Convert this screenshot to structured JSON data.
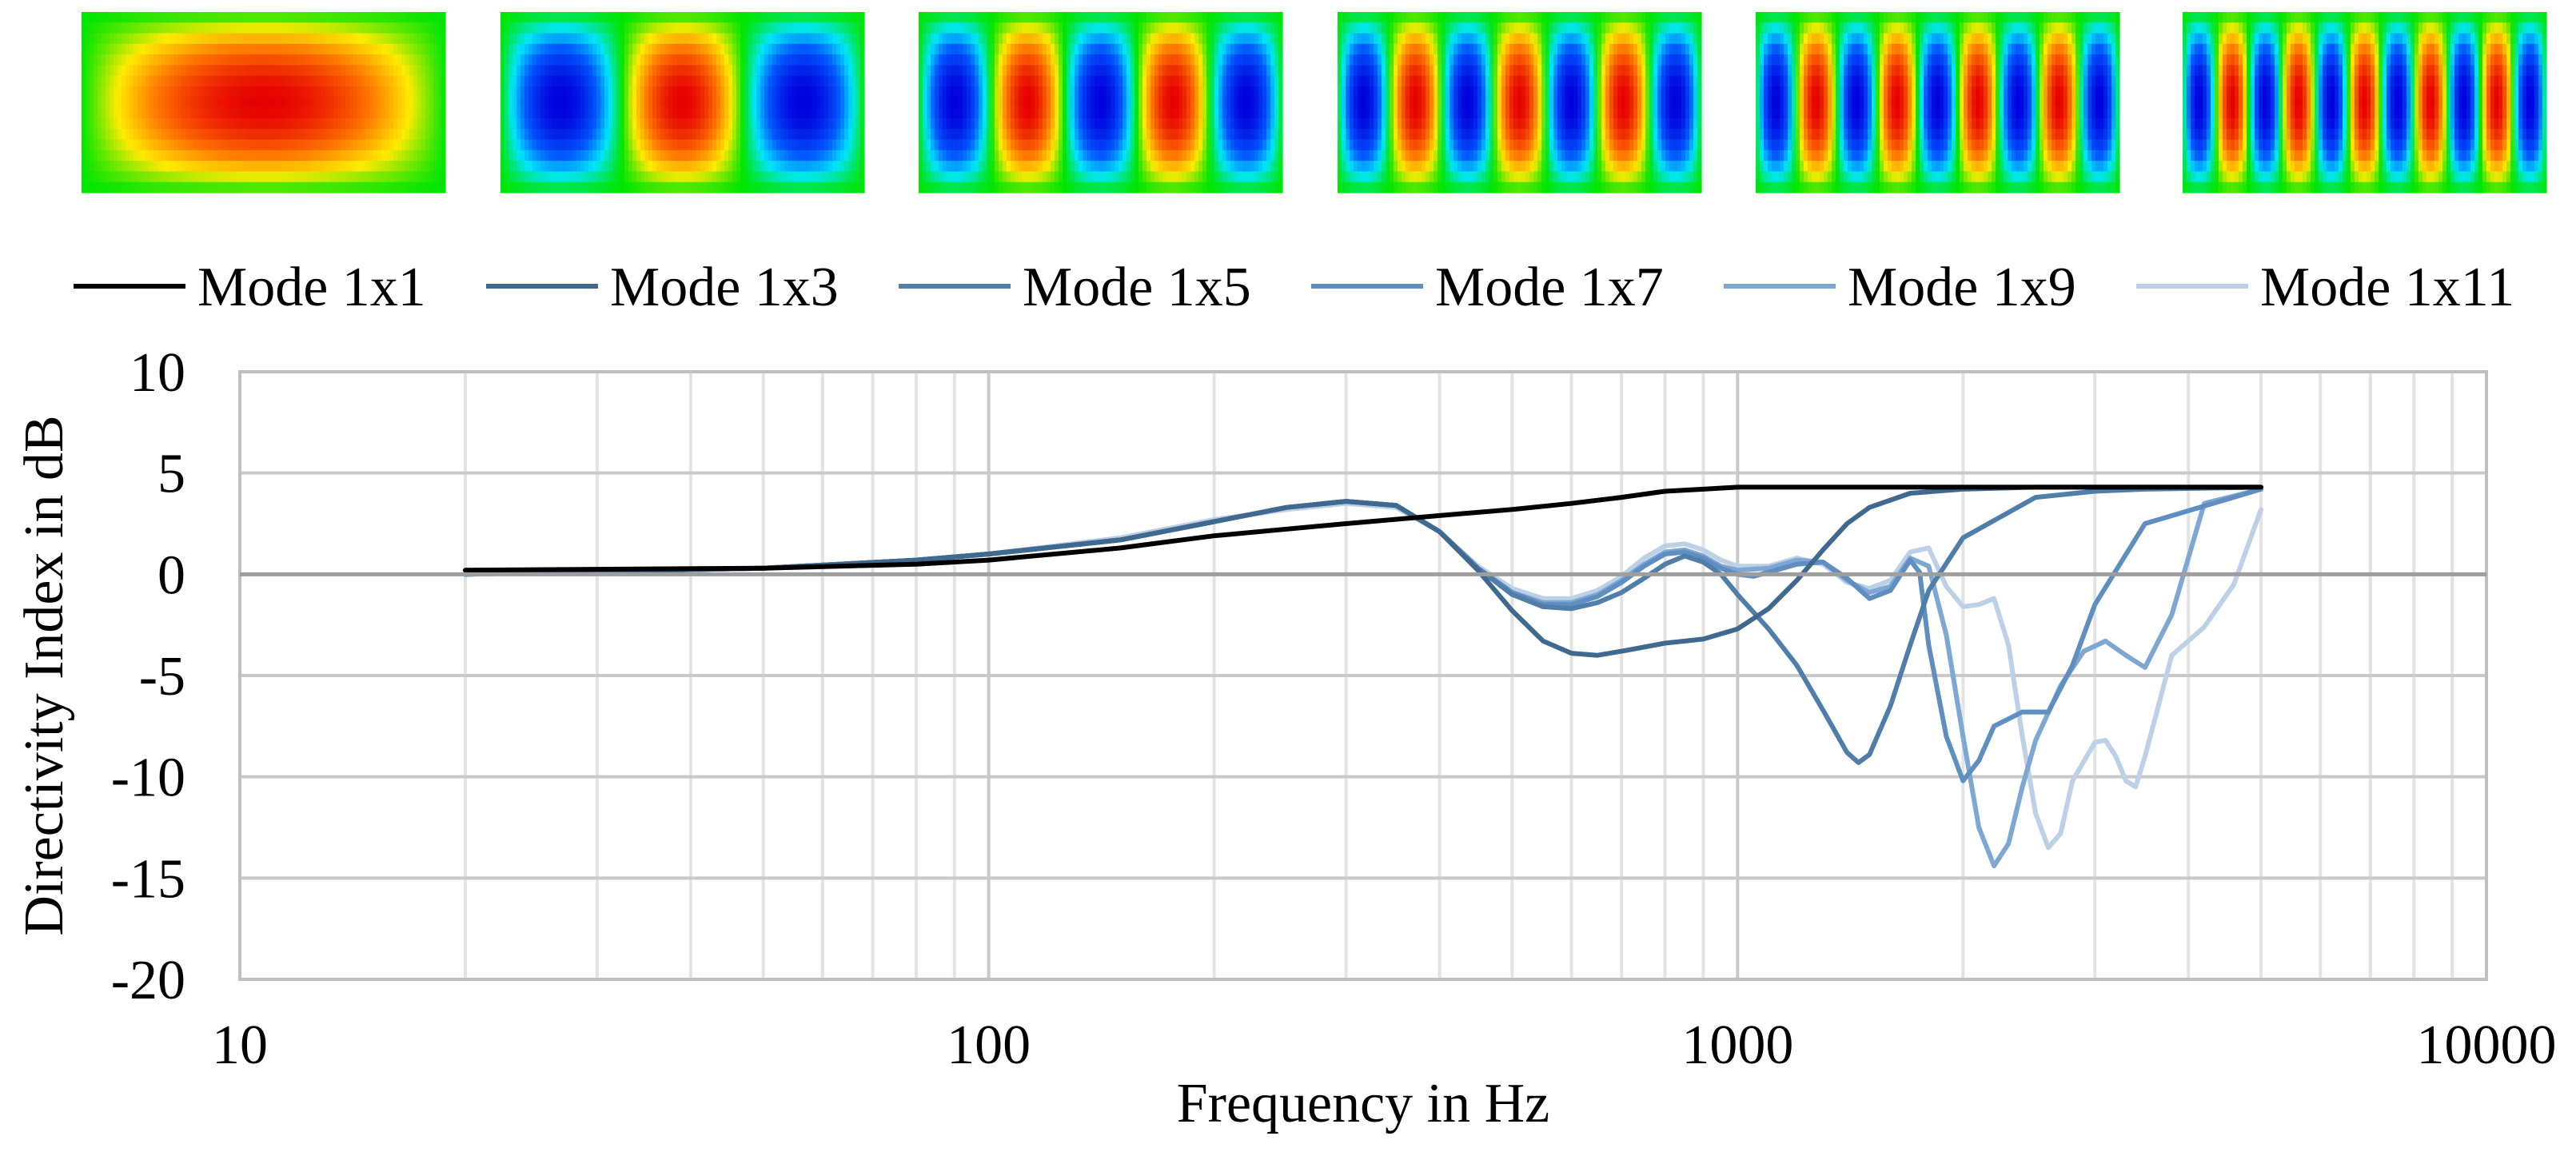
{
  "chart_data": {
    "type": "line",
    "title": "",
    "xlabel": "Frequency in Hz",
    "ylabel": "Directivity Index in dB",
    "xscale": "log",
    "xlim": [
      10,
      10000
    ],
    "ylim": [
      -20,
      10
    ],
    "xticks": [
      10,
      100,
      1000,
      10000
    ],
    "xtick_labels": [
      "10",
      "100",
      "1000",
      "10000"
    ],
    "yticks": [
      10,
      5,
      0,
      -5,
      -10,
      -15,
      -20
    ],
    "ytick_labels": [
      "10",
      "5",
      "0",
      "-5",
      "-10",
      "-15",
      "-20"
    ],
    "grid": true,
    "legend_position": "top",
    "mode_images": [
      {
        "label": "Mode 1x1",
        "m": 1,
        "n": 1
      },
      {
        "label": "Mode 1x3",
        "m": 1,
        "n": 3
      },
      {
        "label": "Mode 1x5",
        "m": 1,
        "n": 5
      },
      {
        "label": "Mode 1x7",
        "m": 1,
        "n": 7
      },
      {
        "label": "Mode 1x9",
        "m": 1,
        "n": 9
      },
      {
        "label": "Mode 1x11",
        "m": 1,
        "n": 11
      }
    ],
    "series": [
      {
        "name": "Mode 1x1",
        "color": "#000000",
        "x": [
          20,
          50,
          80,
          100,
          150,
          200,
          300,
          400,
          500,
          600,
          700,
          800,
          900,
          1000,
          1200,
          1500,
          2000,
          3000,
          5000
        ],
        "y": [
          0.2,
          0.3,
          0.5,
          0.7,
          1.3,
          1.9,
          2.5,
          2.9,
          3.2,
          3.5,
          3.8,
          4.1,
          4.2,
          4.3,
          4.3,
          4.3,
          4.3,
          4.3,
          4.3
        ]
      },
      {
        "name": "Mode 1x3",
        "color": "#40698f",
        "x": [
          20,
          50,
          80,
          100,
          150,
          200,
          250,
          300,
          350,
          400,
          450,
          500,
          550,
          600,
          650,
          700,
          800,
          900,
          1000,
          1100,
          1200,
          1300,
          1400,
          1500,
          1700,
          2000,
          2500,
          3000,
          5000
        ],
        "y": [
          0.0,
          0.3,
          0.7,
          1.0,
          1.7,
          2.6,
          3.3,
          3.6,
          3.4,
          2.1,
          0.2,
          -1.8,
          -3.3,
          -3.9,
          -4.0,
          -3.8,
          -3.4,
          -3.2,
          -2.7,
          -1.7,
          -0.3,
          1.2,
          2.5,
          3.3,
          4.0,
          4.2,
          4.3,
          4.3,
          4.3
        ]
      },
      {
        "name": "Mode 1x5",
        "color": "#4f7eaa",
        "x": [
          20,
          50,
          80,
          100,
          150,
          200,
          250,
          300,
          350,
          400,
          450,
          500,
          550,
          600,
          650,
          700,
          750,
          800,
          850,
          900,
          950,
          1000,
          1100,
          1200,
          1300,
          1400,
          1450,
          1500,
          1600,
          1700,
          1800,
          2000,
          2500,
          3000,
          3500,
          5000
        ],
        "y": [
          0.0,
          0.3,
          0.7,
          1.0,
          1.7,
          2.6,
          3.3,
          3.6,
          3.4,
          2.1,
          0.3,
          -1.0,
          -1.6,
          -1.7,
          -1.4,
          -0.9,
          -0.2,
          0.5,
          0.9,
          0.6,
          0.0,
          -1.0,
          -2.7,
          -4.5,
          -6.7,
          -8.8,
          -9.3,
          -8.9,
          -6.5,
          -3.5,
          -0.8,
          1.8,
          3.8,
          4.1,
          4.2,
          4.3
        ]
      },
      {
        "name": "Mode 1x7",
        "color": "#5f8ec0",
        "x": [
          20,
          50,
          80,
          100,
          150,
          200,
          250,
          300,
          350,
          400,
          450,
          500,
          550,
          600,
          650,
          700,
          750,
          800,
          850,
          900,
          950,
          1000,
          1050,
          1100,
          1200,
          1300,
          1400,
          1500,
          1600,
          1700,
          1750,
          1800,
          1900,
          2000,
          2100,
          2200,
          2400,
          2600,
          2800,
          3000,
          3500,
          5000
        ],
        "y": [
          0.0,
          0.3,
          0.7,
          1.0,
          1.7,
          2.6,
          3.3,
          3.6,
          3.4,
          2.1,
          0.3,
          -0.9,
          -1.5,
          -1.5,
          -1.1,
          -0.4,
          0.4,
          1.0,
          1.1,
          0.8,
          0.3,
          0.0,
          -0.1,
          0.1,
          0.5,
          0.6,
          -0.2,
          -1.2,
          -0.8,
          0.7,
          0.1,
          -3.5,
          -8.0,
          -10.2,
          -9.2,
          -7.5,
          -6.8,
          -6.8,
          -4.5,
          -1.5,
          2.5,
          4.2
        ]
      },
      {
        "name": "Mode 1x9",
        "color": "#7ea7d4",
        "x": [
          20,
          50,
          80,
          100,
          150,
          200,
          250,
          300,
          350,
          400,
          450,
          500,
          550,
          600,
          650,
          700,
          750,
          800,
          850,
          900,
          950,
          1000,
          1100,
          1200,
          1300,
          1400,
          1500,
          1600,
          1700,
          1800,
          1900,
          2000,
          2100,
          2200,
          2300,
          2400,
          2500,
          2700,
          2900,
          3100,
          3300,
          3500,
          3800,
          4200,
          5000
        ],
        "y": [
          0.0,
          0.3,
          0.7,
          1.0,
          1.7,
          2.6,
          3.3,
          3.6,
          3.4,
          2.1,
          0.3,
          -0.9,
          -1.4,
          -1.4,
          -1.0,
          -0.3,
          0.5,
          1.1,
          1.2,
          0.9,
          0.4,
          0.2,
          0.3,
          0.7,
          0.6,
          -0.3,
          -0.9,
          -0.6,
          0.8,
          0.4,
          -3.0,
          -8.0,
          -12.5,
          -14.4,
          -13.3,
          -10.5,
          -8.2,
          -5.5,
          -3.8,
          -3.3,
          -4.0,
          -4.6,
          -2.0,
          3.5,
          4.2
        ]
      },
      {
        "name": "Mode 1x11",
        "color": "#bcd0e6",
        "x": [
          20,
          50,
          80,
          100,
          150,
          200,
          250,
          300,
          350,
          400,
          450,
          500,
          550,
          600,
          650,
          700,
          750,
          800,
          850,
          900,
          950,
          1000,
          1100,
          1200,
          1300,
          1400,
          1500,
          1600,
          1700,
          1800,
          1900,
          2000,
          2100,
          2200,
          2300,
          2400,
          2500,
          2600,
          2700,
          2800,
          3000,
          3100,
          3200,
          3300,
          3400,
          3500,
          3800,
          4200,
          4600,
          5000
        ],
        "y": [
          0.0,
          0.3,
          0.7,
          1.0,
          1.8,
          2.7,
          3.2,
          3.5,
          3.3,
          2.1,
          0.4,
          -0.7,
          -1.2,
          -1.2,
          -0.8,
          -0.1,
          0.8,
          1.4,
          1.5,
          1.2,
          0.7,
          0.4,
          0.4,
          0.8,
          0.5,
          -0.4,
          -0.7,
          -0.3,
          1.1,
          1.3,
          -0.6,
          -1.6,
          -1.5,
          -1.2,
          -3.5,
          -8.0,
          -11.8,
          -13.5,
          -12.8,
          -10.2,
          -8.3,
          -8.2,
          -9.0,
          -10.2,
          -10.5,
          -9.0,
          -4.0,
          -2.6,
          -0.5,
          3.2
        ]
      }
    ]
  }
}
